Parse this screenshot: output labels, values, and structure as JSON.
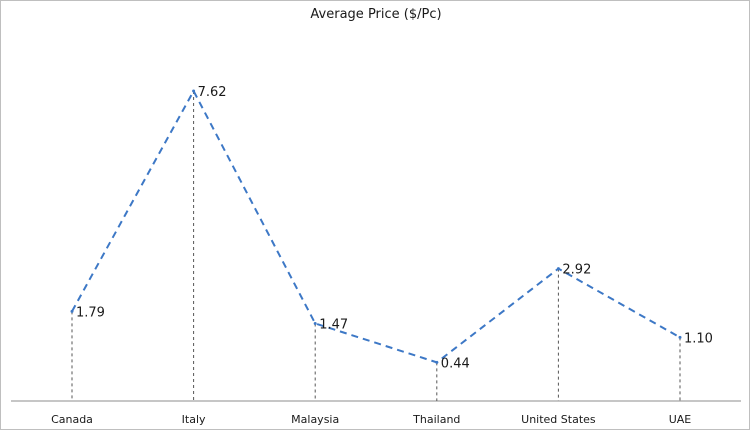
{
  "chart_data": {
    "type": "line",
    "title": "Average Price ($/Pc)",
    "xlabel": "",
    "ylabel": "",
    "categories": [
      "Canada",
      "Italy",
      "Malaysia",
      "Thailand",
      "United States",
      "UAE"
    ],
    "series": [
      {
        "values": [
          1.79,
          7.62,
          1.47,
          0.44,
          2.92,
          1.1
        ],
        "data_labels": [
          "1.79",
          "7.62",
          "1.47",
          "0.44",
          "2.92",
          "1.10"
        ],
        "color": "#3d78c6",
        "line_style": "dashed"
      }
    ],
    "drop_lines": true,
    "grid": false,
    "legend": "none"
  }
}
